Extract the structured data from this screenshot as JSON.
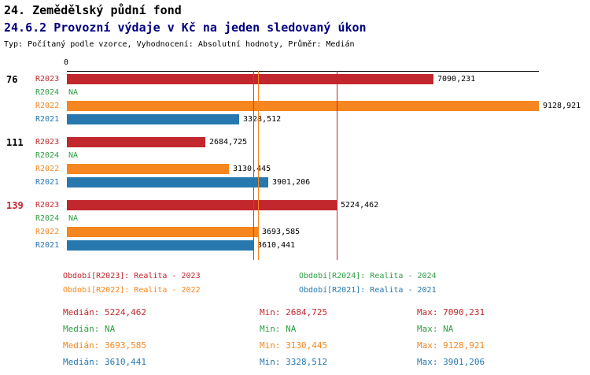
{
  "header": {
    "title": "24. Zemědělský půdní fond",
    "subtitle": "24.6.2 Provozní výdaje v Kč na jeden sledovaný úkon",
    "meta": "Typ: Počítaný podle vzorce, Vyhodnocení: Absolutní hodnoty, Průměr: Medián"
  },
  "colors": {
    "series": {
      "R2023": "#c2272d",
      "R2024": "#2f9e44",
      "R2022": "#f6861f",
      "R2021": "#2878b0"
    },
    "subtitle": "#000080",
    "highlight_row": "#c2272d",
    "axis": "#000000",
    "value_text": "#000000"
  },
  "chart_data": {
    "type": "bar",
    "orientation": "horizontal",
    "title": "24.6.2 Provozní výdaje v Kč na jeden sledovaný úkon",
    "axis": {
      "zero_label": "0",
      "max": 9128.921
    },
    "series_order": [
      "R2023",
      "R2024",
      "R2022",
      "R2021"
    ],
    "groups": [
      {
        "label": "76",
        "highlight": false,
        "bars": [
          {
            "series": "R2023",
            "value": 7090.231,
            "display": "7090,231"
          },
          {
            "series": "R2024",
            "value": null,
            "display": "NA"
          },
          {
            "series": "R2022",
            "value": 9128.921,
            "display": "9128,921"
          },
          {
            "series": "R2021",
            "value": 3328.512,
            "display": "3328,512"
          }
        ]
      },
      {
        "label": "111",
        "highlight": false,
        "bars": [
          {
            "series": "R2023",
            "value": 2684.725,
            "display": "2684,725"
          },
          {
            "series": "R2024",
            "value": null,
            "display": "NA"
          },
          {
            "series": "R2022",
            "value": 3130.445,
            "display": "3130,445"
          },
          {
            "series": "R2021",
            "value": 3901.206,
            "display": "3901,206"
          }
        ]
      },
      {
        "label": "139",
        "highlight": true,
        "bars": [
          {
            "series": "R2023",
            "value": 5224.462,
            "display": "5224,462"
          },
          {
            "series": "R2024",
            "value": null,
            "display": "NA"
          },
          {
            "series": "R2022",
            "value": 3693.585,
            "display": "3693,585"
          },
          {
            "series": "R2021",
            "value": 3610.441,
            "display": "3610,441"
          }
        ]
      }
    ],
    "median_lines": [
      {
        "series": "R2023",
        "value": 5224.462
      },
      {
        "series": "R2022",
        "value": 3693.585
      },
      {
        "series": "R2021",
        "value": 3610.441
      }
    ]
  },
  "legend": [
    {
      "series": "R2023",
      "label": "Období[R2023]: Realita - 2023"
    },
    {
      "series": "R2024",
      "label": "Období[R2024]: Realita - 2024"
    },
    {
      "series": "R2022",
      "label": "Období[R2022]: Realita - 2022"
    },
    {
      "series": "R2021",
      "label": "Období[R2021]: Realita - 2021"
    }
  ],
  "stats": [
    {
      "series": "R2023",
      "median": "Medián: 5224,462",
      "min": "Min: 2684,725",
      "max": "Max: 7090,231"
    },
    {
      "series": "R2024",
      "median": "Medián: NA",
      "min": "Min: NA",
      "max": "Max: NA"
    },
    {
      "series": "R2022",
      "median": "Medián: 3693,585",
      "min": "Min: 3130,445",
      "max": "Max: 9128,921"
    },
    {
      "series": "R2021",
      "median": "Medián: 3610,441",
      "min": "Min: 3328,512",
      "max": "Max: 3901,206"
    }
  ]
}
